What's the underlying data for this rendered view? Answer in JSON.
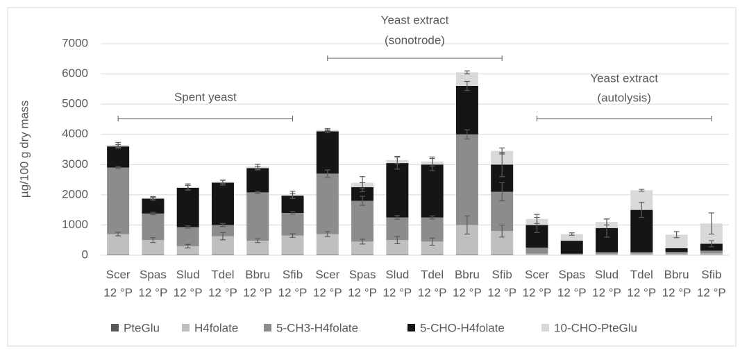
{
  "chart_data": {
    "type": "stacked_bar",
    "ylabel": "µg/100 g dry mass",
    "categories": [
      [
        "Scer",
        "12 °P"
      ],
      [
        "Spas",
        "12 °P"
      ],
      [
        "Slud",
        "12 °P"
      ],
      [
        "Tdel",
        "12 °P"
      ],
      [
        "Bbru",
        "12 °P"
      ],
      [
        "Sfib",
        "12 °P"
      ],
      [
        "Scer",
        "12 °P"
      ],
      [
        "Spas",
        "12 °P"
      ],
      [
        "Slud",
        "12 °P"
      ],
      [
        "Tdel",
        "12 °P"
      ],
      [
        "Bbru",
        "12 °P"
      ],
      [
        "Sfib",
        "12 °P"
      ],
      [
        "Scer",
        "12 °P"
      ],
      [
        "Spas",
        "12 °P"
      ],
      [
        "Slud",
        "12 °P"
      ],
      [
        "Tdel",
        "12 °P"
      ],
      [
        "Bbru",
        "12 °P"
      ],
      [
        "Sfib",
        "12 °P"
      ]
    ],
    "annotations": [
      [
        "Spent yeast"
      ],
      [
        "Yeast extract",
        "(sonotrode)"
      ],
      [
        "Yeast extract",
        "(autolysis)"
      ]
    ],
    "series": [
      {
        "name": "PteGlu",
        "color": "#595959",
        "values": [
          30,
          30,
          30,
          30,
          30,
          30,
          30,
          30,
          30,
          30,
          30,
          30,
          20,
          20,
          20,
          20,
          20,
          20
        ],
        "errors": [
          null,
          null,
          null,
          null,
          null,
          null,
          null,
          null,
          null,
          null,
          null,
          null,
          null,
          null,
          null,
          null,
          null,
          null
        ]
      },
      {
        "name": "H4folate",
        "color": "#bfbfbf",
        "values": [
          670,
          470,
          270,
          600,
          450,
          620,
          670,
          420,
          470,
          420,
          970,
          770,
          30,
          10,
          20,
          30,
          30,
          40
        ],
        "errors": [
          60,
          80,
          60,
          120,
          60,
          60,
          80,
          80,
          120,
          120,
          300,
          200,
          null,
          null,
          null,
          null,
          null,
          null
        ]
      },
      {
        "name": "5-CH3-H4folate",
        "color": "#8c8c8c",
        "values": [
          2200,
          880,
          630,
          370,
          1600,
          750,
          2000,
          1350,
          750,
          800,
          3000,
          1300,
          200,
          20,
          60,
          50,
          60,
          90
        ],
        "errors": [
          30,
          40,
          40,
          50,
          40,
          40,
          120,
          150,
          60,
          50,
          150,
          300,
          null,
          null,
          null,
          null,
          null,
          null
        ]
      },
      {
        "name": "5-CHO-H4folate",
        "color": "#151515",
        "values": [
          700,
          490,
          1300,
          1400,
          800,
          570,
          1400,
          450,
          1800,
          1750,
          1600,
          900,
          750,
          430,
          800,
          1400,
          120,
          230
        ],
        "errors": [
          60,
          50,
          80,
          80,
          60,
          80,
          50,
          150,
          200,
          200,
          150,
          400,
          250,
          null,
          300,
          250,
          null,
          100
        ]
      },
      {
        "name": "10-CHO-PteGlu",
        "color": "#d9d9d9",
        "values": [
          50,
          30,
          30,
          30,
          50,
          30,
          50,
          150,
          100,
          100,
          450,
          450,
          200,
          220,
          200,
          650,
          450,
          670
        ],
        "errors": [
          80,
          40,
          100,
          60,
          80,
          120,
          40,
          200,
          120,
          150,
          50,
          100,
          150,
          40,
          100,
          30,
          100,
          350
        ]
      }
    ],
    "ylim": [
      0,
      7000
    ],
    "yticks": [
      0,
      1000,
      2000,
      3000,
      4000,
      5000,
      6000,
      7000
    ],
    "grid": true,
    "legend": "bottom"
  }
}
